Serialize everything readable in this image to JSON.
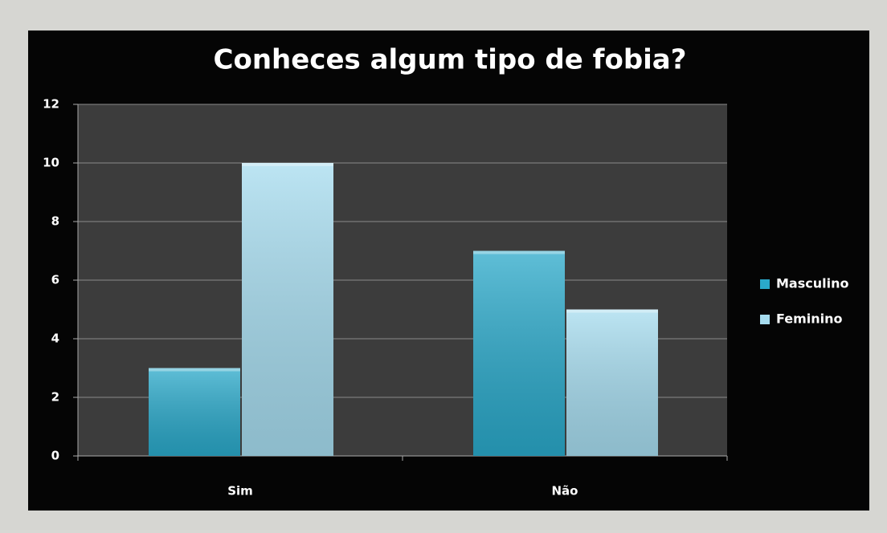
{
  "chart_data": {
    "type": "bar",
    "title": "Conheces algum tipo de fobia?",
    "categories": [
      "Sim",
      "Não"
    ],
    "series": [
      {
        "name": "Masculino",
        "color": "#2aa9ca",
        "values": [
          3,
          7
        ]
      },
      {
        "name": "Feminino",
        "color": "#a6dcef",
        "values": [
          10,
          5
        ]
      }
    ],
    "ylim": [
      0,
      12
    ],
    "yticks": [
      0,
      2,
      4,
      6,
      8,
      10,
      12
    ],
    "grid": true,
    "legend": "right"
  }
}
